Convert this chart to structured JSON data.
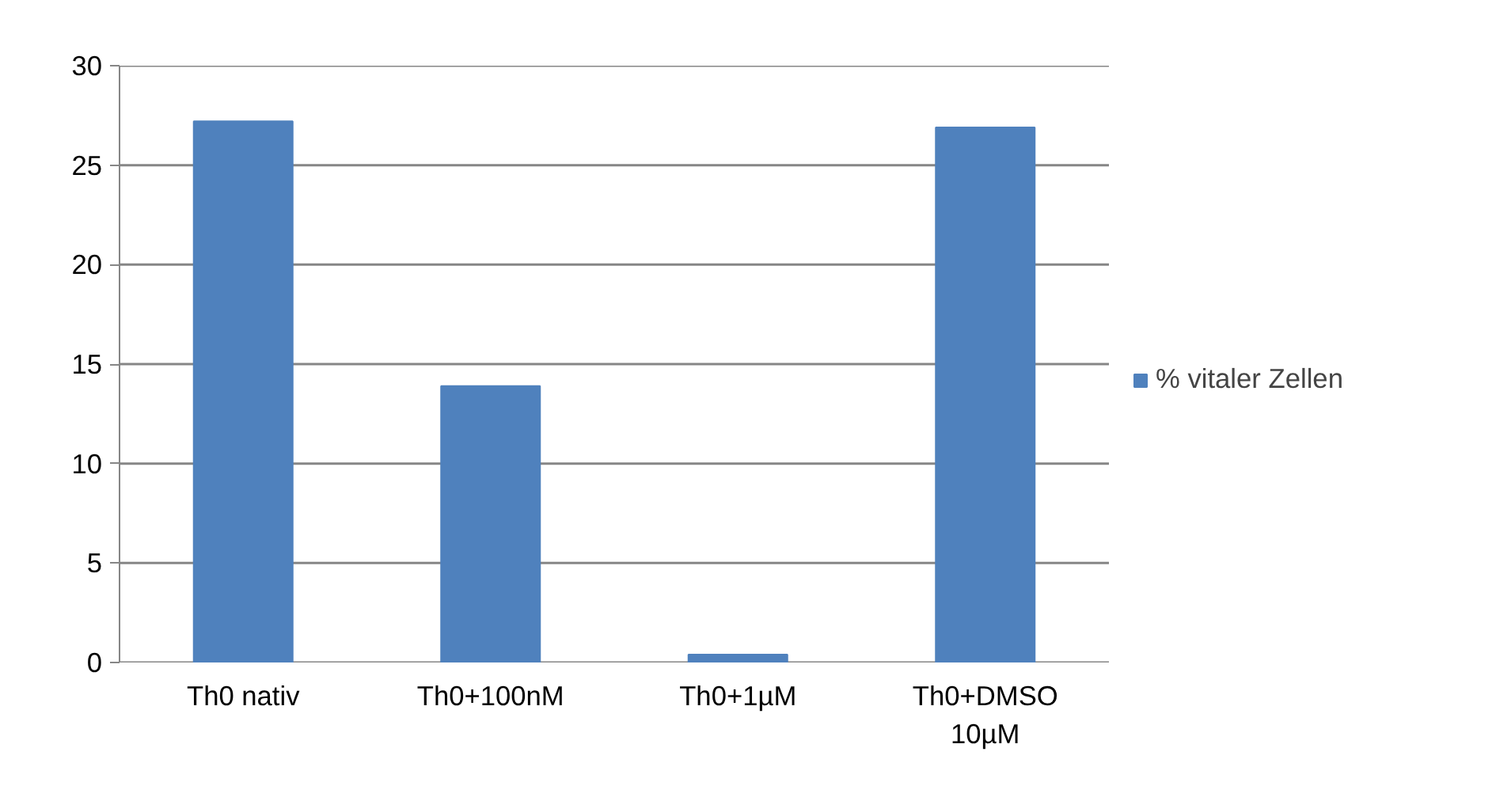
{
  "chart_data": {
    "type": "bar",
    "categories": [
      "Th0 nativ",
      "Th0+100nM",
      "Th0+1µM",
      "Th0+DMSO 10µM"
    ],
    "series": [
      {
        "name": "% vitaler Zellen",
        "color": "#4f81bd",
        "values": [
          27.2,
          13.9,
          0.4,
          26.9
        ]
      }
    ],
    "ylim": [
      0,
      30
    ],
    "yticks": [
      0,
      5,
      10,
      15,
      20,
      25,
      30
    ],
    "grid": "y",
    "legend": "right"
  }
}
